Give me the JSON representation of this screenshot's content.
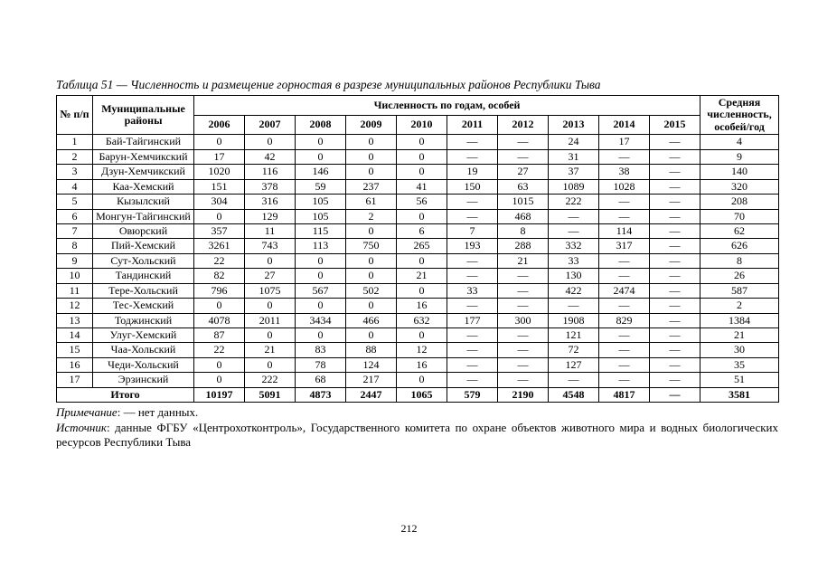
{
  "page": {
    "title": "Таблица 51 — Численность и размещение горностая в разрезе муниципальных районов  Республики Тыва",
    "page_number": "212"
  },
  "table": {
    "col_num": "№ п/п",
    "col_district": "Муниципальные районы",
    "col_years_group": "Численность по годам, особей",
    "col_avg": "Средняя численность, особей/год",
    "years": [
      "2006",
      "2007",
      "2008",
      "2009",
      "2010",
      "2011",
      "2012",
      "2013",
      "2014",
      "2015"
    ],
    "rows": [
      {
        "num": "1",
        "district": "Бай-Тайгинский",
        "values": [
          "0",
          "0",
          "0",
          "0",
          "0",
          "—",
          "—",
          "24",
          "17",
          "—"
        ],
        "avg": "4"
      },
      {
        "num": "2",
        "district": "Барун-Хемчикский",
        "values": [
          "17",
          "42",
          "0",
          "0",
          "0",
          "—",
          "—",
          "31",
          "—",
          "—"
        ],
        "avg": "9"
      },
      {
        "num": "3",
        "district": "Дзун-Хемчикский",
        "values": [
          "1020",
          "116",
          "146",
          "0",
          "0",
          "19",
          "27",
          "37",
          "38",
          "—"
        ],
        "avg": "140"
      },
      {
        "num": "4",
        "district": "Каа-Хемский",
        "values": [
          "151",
          "378",
          "59",
          "237",
          "41",
          "150",
          "63",
          "1089",
          "1028",
          "—"
        ],
        "avg": "320"
      },
      {
        "num": "5",
        "district": "Кызылский",
        "values": [
          "304",
          "316",
          "105",
          "61",
          "56",
          "—",
          "1015",
          "222",
          "—",
          "—"
        ],
        "avg": "208"
      },
      {
        "num": "6",
        "district": "Монгун-Тайгинский",
        "values": [
          "0",
          "129",
          "105",
          "2",
          "0",
          "—",
          "468",
          "—",
          "—",
          "—"
        ],
        "avg": "70"
      },
      {
        "num": "7",
        "district": "Овюрский",
        "values": [
          "357",
          "11",
          "115",
          "0",
          "6",
          "7",
          "8",
          "—",
          "114",
          "—"
        ],
        "avg": "62"
      },
      {
        "num": "8",
        "district": "Пий-Хемский",
        "values": [
          "3261",
          "743",
          "113",
          "750",
          "265",
          "193",
          "288",
          "332",
          "317",
          "—"
        ],
        "avg": "626"
      },
      {
        "num": "9",
        "district": "Сут-Хольский",
        "values": [
          "22",
          "0",
          "0",
          "0",
          "0",
          "—",
          "21",
          "33",
          "—",
          "—"
        ],
        "avg": "8"
      },
      {
        "num": "10",
        "district": "Тандинский",
        "values": [
          "82",
          "27",
          "0",
          "0",
          "21",
          "—",
          "—",
          "130",
          "—",
          "—"
        ],
        "avg": "26"
      },
      {
        "num": "11",
        "district": "Тере-Хольский",
        "values": [
          "796",
          "1075",
          "567",
          "502",
          "0",
          "33",
          "—",
          "422",
          "2474",
          "—"
        ],
        "avg": "587"
      },
      {
        "num": "12",
        "district": "Тес-Хемский",
        "values": [
          "0",
          "0",
          "0",
          "0",
          "16",
          "—",
          "—",
          "—",
          "—",
          "—"
        ],
        "avg": "2"
      },
      {
        "num": "13",
        "district": "Тоджинский",
        "values": [
          "4078",
          "2011",
          "3434",
          "466",
          "632",
          "177",
          "300",
          "1908",
          "829",
          "—"
        ],
        "avg": "1384"
      },
      {
        "num": "14",
        "district": "Улуг-Хемский",
        "values": [
          "87",
          "0",
          "0",
          "0",
          "0",
          "—",
          "—",
          "121",
          "—",
          "—"
        ],
        "avg": "21"
      },
      {
        "num": "15",
        "district": "Чаа-Хольский",
        "values": [
          "22",
          "21",
          "83",
          "88",
          "12",
          "—",
          "—",
          "72",
          "—",
          "—"
        ],
        "avg": "30"
      },
      {
        "num": "16",
        "district": "Чеди-Хольский",
        "values": [
          "0",
          "0",
          "78",
          "124",
          "16",
          "—",
          "—",
          "127",
          "—",
          "—"
        ],
        "avg": "35"
      },
      {
        "num": "17",
        "district": "Эрзинский",
        "values": [
          "0",
          "222",
          "68",
          "217",
          "0",
          "—",
          "—",
          "—",
          "—",
          "—"
        ],
        "avg": "51"
      }
    ],
    "total": {
      "label": "Итого",
      "values": [
        "10197",
        "5091",
        "4873",
        "2447",
        "1065",
        "579",
        "2190",
        "4548",
        "4817",
        "—"
      ],
      "avg": "3581"
    }
  },
  "notes": {
    "note_label": "Примечание",
    "note_text": ": — нет данных.",
    "source_label": "Источник",
    "source_text": ": данные ФГБУ «Центрохотконтроль», Государственного комитета по охране объектов животного мира и водных биологических ресурсов Республики Тыва"
  }
}
